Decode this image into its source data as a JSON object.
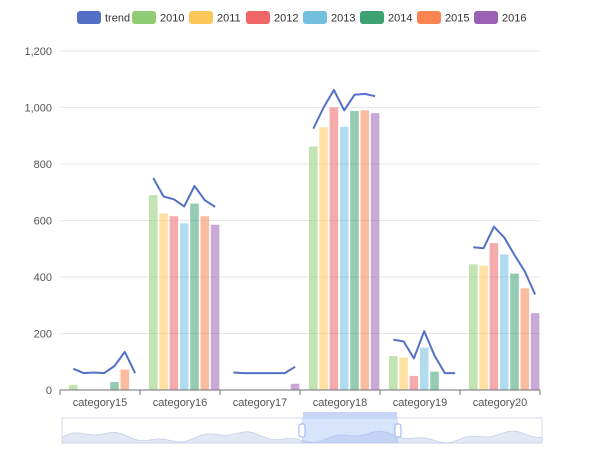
{
  "chart_data": {
    "type": "bar",
    "categories": [
      "category15",
      "category16",
      "category17",
      "category18",
      "category19",
      "category20"
    ],
    "ylim": [
      0,
      1200
    ],
    "yticks": [
      "0",
      "200",
      "400",
      "600",
      "800",
      "1,000",
      "1,200"
    ],
    "ytick_values": [
      0,
      200,
      400,
      600,
      800,
      1000,
      1200
    ],
    "legend_position": "top",
    "grid": "horizontal",
    "series": [
      {
        "name": "2010",
        "color": "#91cc75",
        "values": [
          18,
          690,
          0,
          862,
          120,
          445
        ]
      },
      {
        "name": "2011",
        "color": "#fac858",
        "values": [
          0,
          625,
          0,
          930,
          115,
          440
        ]
      },
      {
        "name": "2012",
        "color": "#ee6666",
        "values": [
          0,
          615,
          0,
          1000,
          50,
          520
        ]
      },
      {
        "name": "2013",
        "color": "#73c0de",
        "values": [
          0,
          590,
          0,
          932,
          150,
          480
        ]
      },
      {
        "name": "2014",
        "color": "#3ba272",
        "values": [
          28,
          660,
          0,
          988,
          65,
          412
        ]
      },
      {
        "name": "2015",
        "color": "#fc8452",
        "values": [
          72,
          615,
          0,
          990,
          0,
          360
        ]
      },
      {
        "name": "2016",
        "color": "#9a60b4",
        "values": [
          0,
          585,
          22,
          980,
          0,
          272
        ]
      }
    ],
    "trend": {
      "name": "trend",
      "color": "#5470c6",
      "values": [
        [
          75,
          60,
          62,
          60,
          85,
          135,
          60
        ],
        [
          750,
          685,
          675,
          650,
          722,
          672,
          648
        ],
        [
          62,
          60,
          60,
          60,
          60,
          60,
          82
        ],
        [
          925,
          1000,
          1062,
          990,
          1045,
          1048,
          1040
        ],
        [
          178,
          172,
          112,
          208,
          122,
          60,
          60
        ],
        [
          505,
          502,
          578,
          540,
          478,
          420,
          338
        ]
      ]
    },
    "zoom_slider": {
      "start_percent": 50,
      "end_percent": 70
    }
  }
}
